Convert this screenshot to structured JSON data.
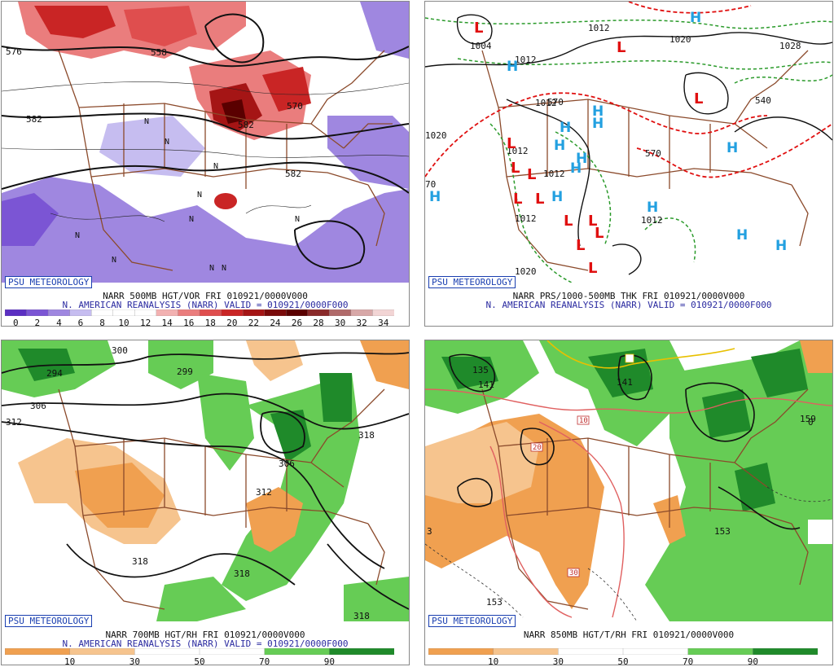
{
  "badge_text": "PSU METEOROLOGY",
  "panels": [
    {
      "id": "p1",
      "line1": "NARR 500MB HGT/VOR FRI 010921/0000V000",
      "line2": "N. AMERICAN REANALYSIS (NARR) VALID = 010921/0000F000",
      "colorbar": {
        "labels": [
          "0",
          "2",
          "4",
          "6",
          "8",
          "10",
          "12",
          "14",
          "16",
          "18",
          "20",
          "22",
          "24",
          "26",
          "28",
          "30",
          "32",
          "34"
        ],
        "colors": [
          "#5b2fc2",
          "#7b55d4",
          "#9f87e0",
          "#c6bdf0",
          "#ffffff",
          "#ffffff",
          "#ffffff",
          "#f2b1b1",
          "#ea7d7d",
          "#df4e4e",
          "#c92525",
          "#a51515",
          "#7a0a0a",
          "#5a0000",
          "#8a2a2a",
          "#b06a6a",
          "#d8a8a8",
          "#f2d5d5"
        ]
      },
      "contour_labels": [
        "576",
        "558",
        "582",
        "582",
        "570",
        "582"
      ],
      "map_marks": [
        "N",
        "N",
        "N",
        "N",
        "N",
        "N",
        "N",
        "N",
        "N",
        "N"
      ]
    },
    {
      "id": "p2",
      "line1": "NARR PRS/1000-500MB THK FRI 010921/0000V000",
      "line2": "N. AMERICAN REANALYSIS (NARR) VALID = 010921/0000F000",
      "contour_labels": [
        "1004",
        "1012",
        "1012",
        "1012",
        "1012",
        "1012",
        "1012",
        "1012",
        "1020",
        "1020",
        "1028",
        "570",
        "570",
        "540",
        "1020",
        "70"
      ],
      "map_marks": [
        "L",
        "L",
        "L",
        "L",
        "L",
        "L",
        "L",
        "L",
        "L",
        "L",
        "L",
        "L",
        "L",
        "H",
        "H",
        "H",
        "H",
        "H",
        "H",
        "H",
        "H",
        "H",
        "H",
        "H",
        "H",
        "H"
      ]
    },
    {
      "id": "p3",
      "line1": "NARR 700MB HGT/RH FRI 010921/0000V000",
      "line2": "N. AMERICAN REANALYSIS (NARR) VALID = 010921/0000F000",
      "colorbar": {
        "labels": [
          "10",
          "30",
          "50",
          "70",
          "90"
        ],
        "colors": [
          "#f0a050",
          "#f6c48e",
          "#ffffff",
          "#ffffff",
          "#66cc55",
          "#1f8a2a"
        ]
      },
      "contour_labels": [
        "294",
        "300",
        "306",
        "312",
        "299",
        "318",
        "306",
        "312",
        "318",
        "318",
        "318"
      ]
    },
    {
      "id": "p4",
      "line1": "NARR 850MB HGT/T/RH FRI 010921/0000V000",
      "line2": "",
      "colorbar": {
        "labels": [
          "10",
          "30",
          "50",
          "70",
          "90"
        ],
        "colors": [
          "#f0a050",
          "#f6c48e",
          "#ffffff",
          "#ffffff",
          "#66cc55",
          "#1f8a2a"
        ]
      },
      "contour_labels": [
        "135",
        "141",
        "141",
        "10",
        "20",
        "30",
        "153",
        "153",
        "159",
        "0",
        "3"
      ]
    }
  ],
  "colors": {
    "state_lines": "#8b4a2b",
    "contour": "#111111",
    "badge_blue": "#1a3fb0",
    "caption_blue": "#2a2aa0",
    "low_marker": "#e01010",
    "high_marker": "#22a0e0",
    "thickness_green": "#2a9a2a",
    "thickness_red": "#e01010",
    "isotherm_red": "#e06060",
    "isotherm_yellow": "#e8c000"
  }
}
